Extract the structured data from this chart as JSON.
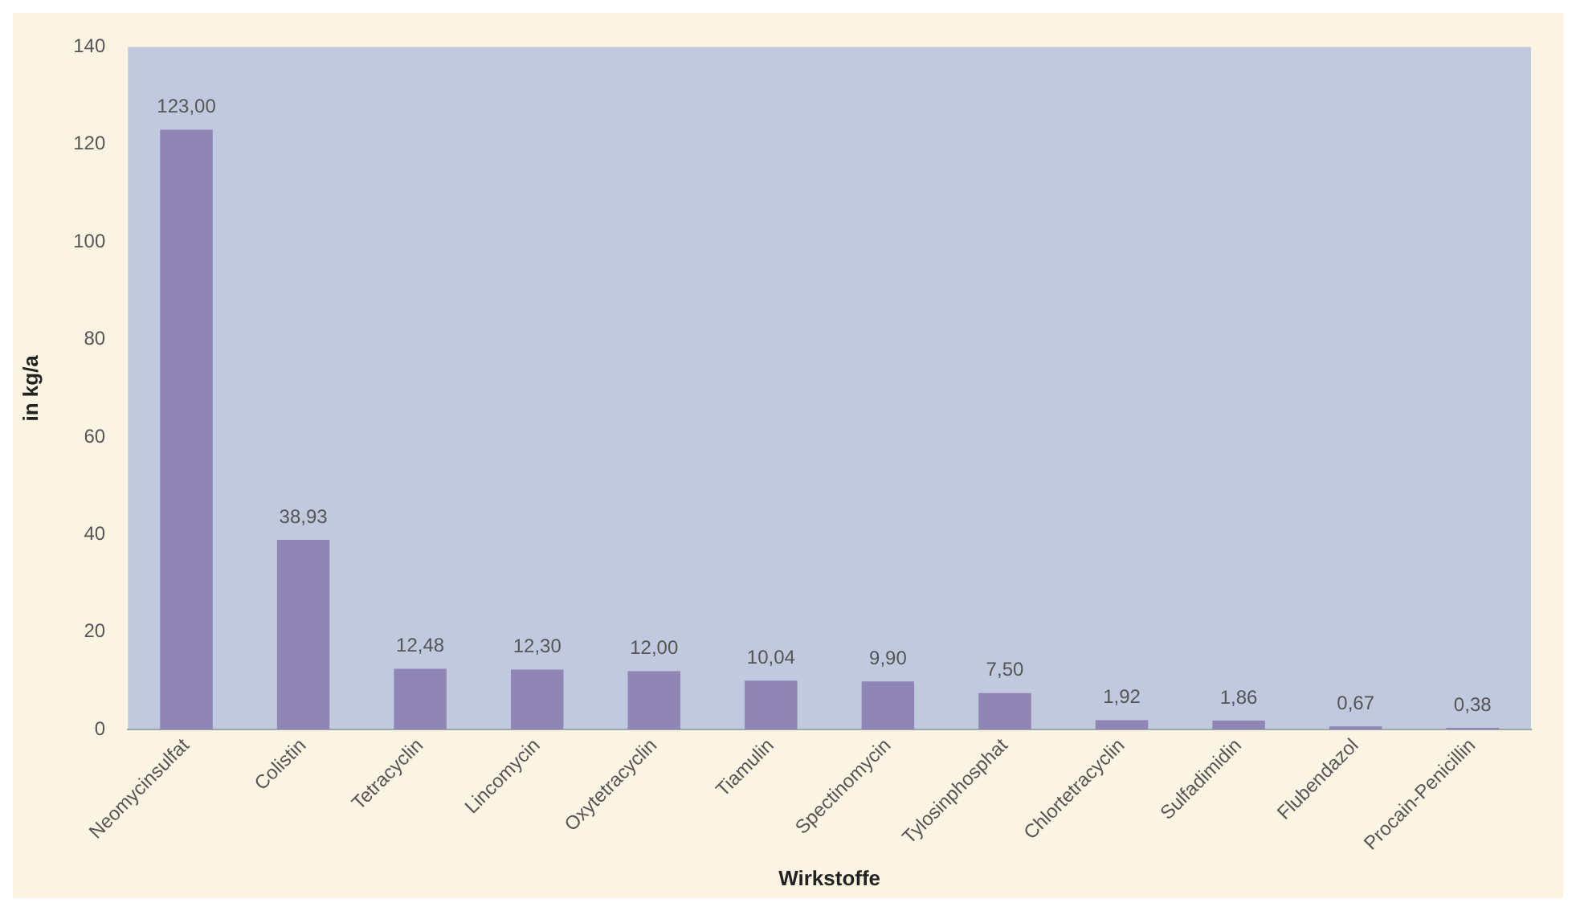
{
  "chart_data": {
    "type": "bar",
    "xlabel": "Wirkstoffe",
    "ylabel": "in kg/a",
    "categories": [
      "Neomycinsulfat",
      "Colistin",
      "Tetracyclin",
      "Lincomycin",
      "Oxytetracyclin",
      "Tiamulin",
      "Spectinomycin",
      "Tylosinphosphat",
      "Chlortetracyclin",
      "Sulfadimidin",
      "Flubendazol",
      "Procain-Penicillin"
    ],
    "values": [
      123.0,
      38.93,
      12.48,
      12.3,
      12.0,
      10.04,
      9.9,
      7.5,
      1.92,
      1.86,
      0.67,
      0.38
    ],
    "value_labels": [
      "123,00",
      "38,93",
      "12,48",
      "12,30",
      "12,00",
      "10,04",
      "9,90",
      "7,50",
      "1,92",
      "1,86",
      "0,67",
      "0,38"
    ],
    "color": "#8f86b6",
    "ylim": [
      0,
      140
    ],
    "yticks": [
      0,
      20,
      40,
      60,
      80,
      100,
      120,
      140
    ],
    "grid": false,
    "legend": false
  }
}
